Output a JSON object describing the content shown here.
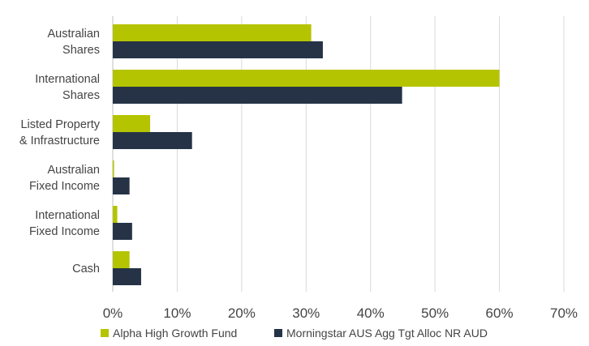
{
  "chart_data": {
    "type": "bar",
    "orientation": "horizontal",
    "categories": [
      [
        "Australian",
        "Shares"
      ],
      [
        "International",
        "Shares"
      ],
      [
        "Listed Property",
        "& Infrastructure"
      ],
      [
        "Australian",
        "Fixed Income"
      ],
      [
        "International",
        "Fixed Income"
      ],
      [
        "Cash"
      ]
    ],
    "series": [
      {
        "name": "Alpha High Growth Fund",
        "color": "#b5c400",
        "values": [
          30.8,
          60.0,
          5.8,
          0.2,
          0.7,
          2.6
        ]
      },
      {
        "name": "Morningstar AUS Agg Tgt Alloc NR AUD",
        "color": "#263346",
        "values": [
          32.6,
          44.9,
          12.3,
          2.6,
          3.0,
          4.4
        ]
      }
    ],
    "xlim": [
      0,
      70
    ],
    "x_ticks": [
      0,
      10,
      20,
      30,
      40,
      50,
      60,
      70
    ],
    "x_tick_labels": [
      "0%",
      "10%",
      "20%",
      "30%",
      "40%",
      "50%",
      "60%",
      "70%"
    ],
    "grid": "vertical",
    "legend": "bottom-left",
    "title": "",
    "xlabel": "",
    "ylabel": ""
  }
}
